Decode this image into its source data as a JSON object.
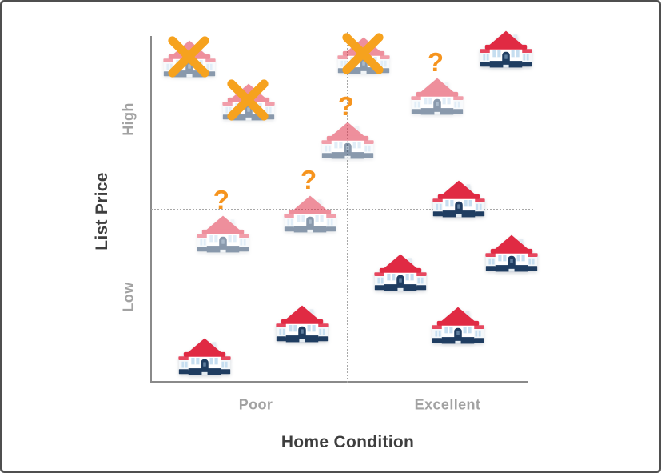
{
  "frame": {
    "background": "#ffffff",
    "border_color": "#4f4f4f"
  },
  "axis": {
    "y_title": "List Price",
    "x_title": "Home Condition"
  },
  "ticks": {
    "high": "High",
    "low": "Low",
    "poor": "Poor",
    "excellent": "Excellent"
  },
  "marks": {
    "question_glyph": "?",
    "x_meaning": "crossed-out listing (overpriced for condition)",
    "question_meaning": "questionable listing",
    "plain_meaning": "well-priced listing"
  },
  "colors": {
    "accent_orange": "#f6a21e",
    "question_orange": "#f6941e",
    "roof_red": "#e02a43",
    "base_navy": "#1f3d61",
    "window_blue": "#c6def0",
    "axis_gray": "#8a8a8a",
    "dotted_gray": "#a8a8a8",
    "tick_gray": "#a2a2a2",
    "title_dark": "#3e3e3e"
  },
  "chart_data": {
    "type": "scatter",
    "title": "",
    "xlabel": "Home Condition",
    "ylabel": "List Price",
    "x_tick_labels": [
      "Poor",
      "Excellent"
    ],
    "y_tick_labels": [
      "Low",
      "High"
    ],
    "axes_numeric": false,
    "xlim": [
      0,
      100
    ],
    "ylim": [
      0,
      100
    ],
    "grid": false,
    "legend": null,
    "reference_lines": {
      "vertical_x": 52.2,
      "horizontal_y": 50.0
    },
    "points": [
      {
        "x": 10.4,
        "y": 93.1,
        "marker": "x",
        "faded": true
      },
      {
        "x": 26.0,
        "y": 80.6,
        "marker": "x",
        "faded": true
      },
      {
        "x": 56.4,
        "y": 94.0,
        "marker": "x",
        "faded": true
      },
      {
        "x": 75.9,
        "y": 82.2,
        "marker": "question",
        "faded": true
      },
      {
        "x": 94.1,
        "y": 95.8,
        "marker": "none",
        "faded": false
      },
      {
        "x": 52.2,
        "y": 69.5,
        "marker": "question",
        "faded": true
      },
      {
        "x": 42.3,
        "y": 48.3,
        "marker": "question",
        "faded": true
      },
      {
        "x": 19.2,
        "y": 42.5,
        "marker": "question",
        "faded": true
      },
      {
        "x": 81.6,
        "y": 52.7,
        "marker": "none",
        "faded": false
      },
      {
        "x": 66.2,
        "y": 31.4,
        "marker": "none",
        "faded": false
      },
      {
        "x": 95.6,
        "y": 36.9,
        "marker": "none",
        "faded": false
      },
      {
        "x": 81.4,
        "y": 16.2,
        "marker": "none",
        "faded": false
      },
      {
        "x": 40.2,
        "y": 16.6,
        "marker": "none",
        "faded": false
      },
      {
        "x": 14.4,
        "y": 7.2,
        "marker": "none",
        "faded": false
      }
    ]
  }
}
